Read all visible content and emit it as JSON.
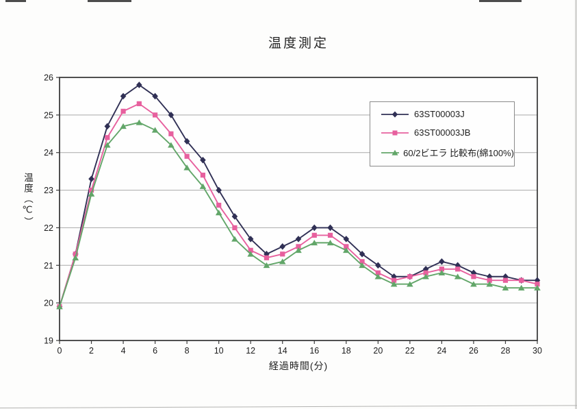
{
  "chart_data": {
    "type": "line",
    "title": "温度測定",
    "xlabel": "経過時間(分)",
    "ylabel": "温度（℃）",
    "xlim": [
      0,
      30
    ],
    "ylim": [
      19,
      26
    ],
    "x_ticks": [
      0,
      2,
      4,
      6,
      8,
      10,
      12,
      14,
      16,
      18,
      20,
      22,
      24,
      26,
      28,
      30
    ],
    "y_ticks": [
      19,
      20,
      21,
      22,
      23,
      24,
      25,
      26
    ],
    "grid": "horizontal",
    "legend_position": "upper-right-inside",
    "x": [
      0,
      1,
      2,
      3,
      4,
      5,
      6,
      7,
      8,
      9,
      10,
      11,
      12,
      13,
      14,
      15,
      16,
      17,
      18,
      19,
      20,
      21,
      22,
      23,
      24,
      25,
      26,
      27,
      28,
      29,
      30
    ],
    "series": [
      {
        "name": "63ST00003J",
        "color": "#303055",
        "marker": "diamond",
        "values": [
          19.9,
          21.3,
          23.3,
          24.7,
          25.5,
          25.8,
          25.5,
          25.0,
          24.3,
          23.8,
          23.0,
          22.3,
          21.7,
          21.3,
          21.5,
          21.7,
          22.0,
          22.0,
          21.7,
          21.3,
          21.0,
          20.7,
          20.7,
          20.9,
          21.1,
          21.0,
          20.8,
          20.7,
          20.7,
          20.6,
          20.6
        ]
      },
      {
        "name": "63ST00003JB",
        "color": "#e7609e",
        "marker": "square",
        "values": [
          19.9,
          21.3,
          23.0,
          24.4,
          25.1,
          25.3,
          25.0,
          24.5,
          23.9,
          23.4,
          22.6,
          22.0,
          21.4,
          21.2,
          21.3,
          21.5,
          21.8,
          21.8,
          21.5,
          21.1,
          20.8,
          20.6,
          20.7,
          20.8,
          20.9,
          20.9,
          20.7,
          20.6,
          20.6,
          20.6,
          20.5
        ]
      },
      {
        "name": "60/2ビエラ 比較布(綿100%)",
        "color": "#62a669",
        "marker": "triangle",
        "values": [
          19.9,
          21.2,
          22.9,
          24.2,
          24.7,
          24.8,
          24.6,
          24.2,
          23.6,
          23.1,
          22.4,
          21.7,
          21.3,
          21.0,
          21.1,
          21.4,
          21.6,
          21.6,
          21.4,
          21.0,
          20.7,
          20.5,
          20.5,
          20.7,
          20.8,
          20.7,
          20.5,
          20.5,
          20.4,
          20.4,
          20.4
        ]
      }
    ]
  },
  "colors": {
    "grid": "#a9a9a9",
    "axis": "#3c3c3c",
    "tick_text": "#1c1c1c",
    "plot_background": "#fefefe",
    "legend_border": "#8a8a8a"
  }
}
